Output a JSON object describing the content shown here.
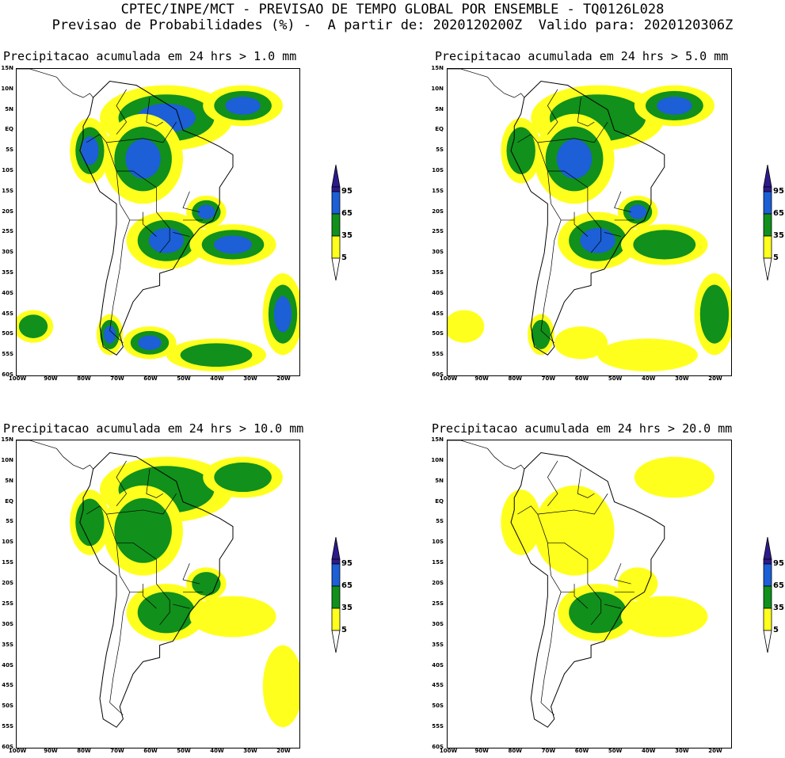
{
  "header": {
    "line1": "CPTEC/INPE/MCT - PREVISAO DE TEMPO GLOBAL POR ENSEMBLE - TQ0126L028",
    "line2": "Previsao de Probabilidades (%) -  A partir de: 2020120200Z  Valido para: 2020120306Z"
  },
  "panels": [
    {
      "title": "Precipitacao acumulada em 24 hrs > 1.0 mm",
      "coverage": "very-high"
    },
    {
      "title": "Precipitacao acumulada em 24 hrs > 5.0 mm",
      "coverage": "high"
    },
    {
      "title": "Precipitacao acumulada em 24 hrs > 10.0 mm",
      "coverage": "medium"
    },
    {
      "title": "Precipitacao acumulada em 24 hrs > 20.0 mm",
      "coverage": "low"
    }
  ],
  "lat_labels": [
    "15N",
    "10N",
    "5N",
    "EQ",
    "5S",
    "10S",
    "15S",
    "20S",
    "25S",
    "30S",
    "35S",
    "40S",
    "45S",
    "50S",
    "55S",
    "60S"
  ],
  "lon_labels": [
    "100W",
    "90W",
    "80W",
    "70W",
    "60W",
    "50W",
    "40W",
    "30W",
    "20W"
  ],
  "legend": {
    "labels": [
      "95",
      "65",
      "35",
      "5"
    ],
    "colors": {
      "c95": "#2e1a8c",
      "c65": "#1c5fd6",
      "c35": "#11901b",
      "c5": "#ffff1e"
    }
  }
}
